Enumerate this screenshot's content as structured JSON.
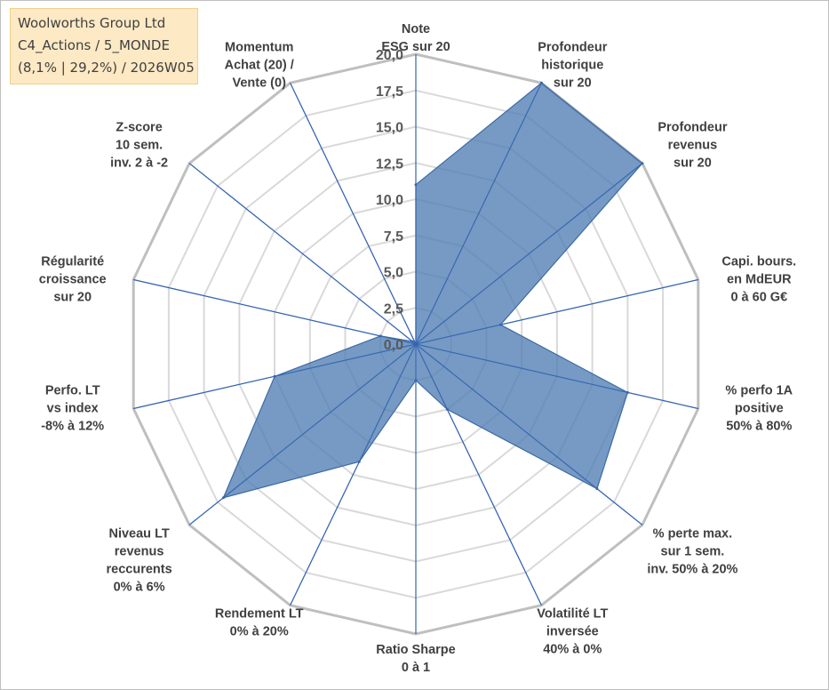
{
  "info": {
    "company": "Woolworths Group Ltd",
    "category": "C4_Actions / 5_MONDE",
    "stats": "(8,1% | 29,2%) / 2026W05"
  },
  "chart_data": {
    "type": "radar",
    "r_range": [
      0,
      20
    ],
    "ticks": [
      "0,0",
      "2,5",
      "5,0",
      "7,5",
      "10,0",
      "12,5",
      "15,0",
      "17,5",
      "20,0"
    ],
    "axes": [
      {
        "label": [
          "Note",
          "ESG sur 20"
        ],
        "value": 11.0
      },
      {
        "label": [
          "Profondeur",
          "historique",
          "sur 20"
        ],
        "value": 20.0
      },
      {
        "label": [
          "Profondeur",
          "revenus",
          "sur 20"
        ],
        "value": 20.0
      },
      {
        "label": [
          "Capi. bours.",
          "en MdEUR",
          "0 à 60 G€"
        ],
        "value": 6.0
      },
      {
        "label": [
          "% perfo 1A",
          "positive",
          "50% à 80%"
        ],
        "value": 15.0
      },
      {
        "label": [
          "% perte max.",
          "sur 1 sem.",
          "inv. 50% à 20%"
        ],
        "value": 16.0
      },
      {
        "label": [
          "Volatilité LT",
          "inversée",
          "40% à 0%"
        ],
        "value": 5.0
      },
      {
        "label": [
          "Ratio Sharpe",
          "0 à 1"
        ],
        "value": 2.5
      },
      {
        "label": [
          "Rendement LT",
          "0% à 20%"
        ],
        "value": 9.0
      },
      {
        "label": [
          "Niveau LT",
          "revenus",
          "reccurents",
          "0% à 6%"
        ],
        "value": 17.0
      },
      {
        "label": [
          "Perfo. LT",
          "vs index",
          "-8% à 12%"
        ],
        "value": 10.0
      },
      {
        "label": [
          "Régularité",
          "croissance",
          "sur 20"
        ],
        "value": 2.5
      },
      {
        "label": [
          "Z-score",
          "10 sem.",
          "inv. 2 à -2"
        ],
        "value": 0.3
      },
      {
        "label": [
          "Momentum",
          "Achat (20) /",
          "Vente (0)"
        ],
        "value": 0.0
      }
    ],
    "colors": {
      "fill": "#4f7db3",
      "outline": "#3d6aa3",
      "spoke": "#3565b0",
      "grid": "#d9d9d9",
      "grid_outer": "#bfbfbf"
    }
  }
}
